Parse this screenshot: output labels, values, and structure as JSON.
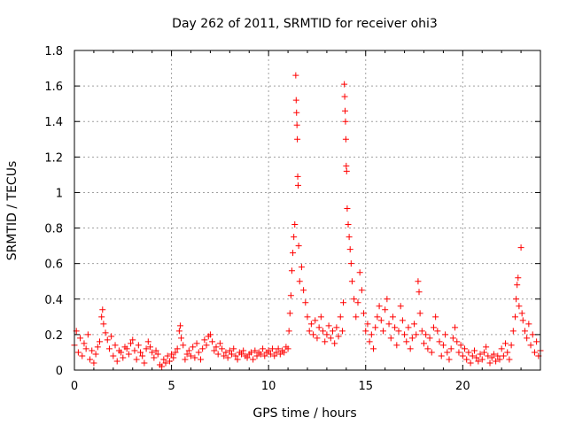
{
  "chart_data": {
    "type": "scatter",
    "title": "Day 262 of 2011, SRMTID for receiver ohi3",
    "xlabel": "GPS time / hours",
    "ylabel": "SRMTID / TECUs",
    "xlim": [
      0,
      24
    ],
    "ylim": [
      0,
      1.8
    ],
    "xticks": [
      0,
      5,
      10,
      15,
      20
    ],
    "xtick_labels": [
      "0",
      "5",
      "10",
      "15",
      "20"
    ],
    "yticks": [
      0,
      0.2,
      0.4,
      0.6,
      0.8,
      1.0,
      1.2,
      1.4,
      1.6,
      1.8
    ],
    "ytick_labels": [
      "0",
      "0.2",
      "0.4",
      "0.6",
      "0.8",
      "1",
      "1.2",
      "1.4",
      "1.6",
      "1.8"
    ],
    "grid": true,
    "marker": "+",
    "series": [
      {
        "name": "SRMTID",
        "color": "#ff0000",
        "points": [
          [
            0.0,
            0.14
          ],
          [
            0.1,
            0.22
          ],
          [
            0.2,
            0.1
          ],
          [
            0.3,
            0.18
          ],
          [
            0.4,
            0.08
          ],
          [
            0.5,
            0.15
          ],
          [
            0.6,
            0.12
          ],
          [
            0.7,
            0.2
          ],
          [
            0.8,
            0.06
          ],
          [
            0.9,
            0.11
          ],
          [
            1.0,
            0.04
          ],
          [
            1.1,
            0.09
          ],
          [
            1.2,
            0.13
          ],
          [
            1.3,
            0.16
          ],
          [
            1.4,
            0.3
          ],
          [
            1.45,
            0.34
          ],
          [
            1.5,
            0.26
          ],
          [
            1.6,
            0.21
          ],
          [
            1.7,
            0.17
          ],
          [
            1.8,
            0.12
          ],
          [
            1.9,
            0.19
          ],
          [
            2.0,
            0.08
          ],
          [
            2.1,
            0.14
          ],
          [
            2.2,
            0.05
          ],
          [
            2.3,
            0.11
          ],
          [
            2.4,
            0.1
          ],
          [
            2.5,
            0.07
          ],
          [
            2.6,
            0.13
          ],
          [
            2.7,
            0.12
          ],
          [
            2.8,
            0.09
          ],
          [
            2.9,
            0.15
          ],
          [
            3.0,
            0.17
          ],
          [
            3.1,
            0.11
          ],
          [
            3.2,
            0.06
          ],
          [
            3.3,
            0.14
          ],
          [
            3.4,
            0.1
          ],
          [
            3.5,
            0.08
          ],
          [
            3.6,
            0.04
          ],
          [
            3.7,
            0.12
          ],
          [
            3.8,
            0.16
          ],
          [
            3.9,
            0.13
          ],
          [
            4.0,
            0.1
          ],
          [
            4.1,
            0.07
          ],
          [
            4.2,
            0.11
          ],
          [
            4.3,
            0.09
          ],
          [
            4.4,
            0.03
          ],
          [
            4.5,
            0.02
          ],
          [
            4.6,
            0.06
          ],
          [
            4.7,
            0.04
          ],
          [
            4.8,
            0.08
          ],
          [
            4.9,
            0.05
          ],
          [
            5.0,
            0.09
          ],
          [
            5.1,
            0.07
          ],
          [
            5.2,
            0.1
          ],
          [
            5.3,
            0.12
          ],
          [
            5.4,
            0.22
          ],
          [
            5.45,
            0.25
          ],
          [
            5.5,
            0.18
          ],
          [
            5.6,
            0.14
          ],
          [
            5.7,
            0.06
          ],
          [
            5.8,
            0.09
          ],
          [
            5.9,
            0.11
          ],
          [
            6.0,
            0.08
          ],
          [
            6.1,
            0.13
          ],
          [
            6.2,
            0.07
          ],
          [
            6.3,
            0.15
          ],
          [
            6.4,
            0.1
          ],
          [
            6.5,
            0.06
          ],
          [
            6.6,
            0.12
          ],
          [
            6.7,
            0.17
          ],
          [
            6.8,
            0.14
          ],
          [
            6.9,
            0.19
          ],
          [
            7.0,
            0.2
          ],
          [
            7.1,
            0.16
          ],
          [
            7.2,
            0.11
          ],
          [
            7.3,
            0.13
          ],
          [
            7.4,
            0.09
          ],
          [
            7.5,
            0.15
          ],
          [
            7.6,
            0.12
          ],
          [
            7.7,
            0.08
          ],
          [
            7.8,
            0.1
          ],
          [
            7.9,
            0.07
          ],
          [
            8.0,
            0.11
          ],
          [
            8.1,
            0.09
          ],
          [
            8.2,
            0.12
          ],
          [
            8.3,
            0.08
          ],
          [
            8.4,
            0.06
          ],
          [
            8.5,
            0.1
          ],
          [
            8.6,
            0.09
          ],
          [
            8.7,
            0.11
          ],
          [
            8.8,
            0.08
          ],
          [
            8.9,
            0.07
          ],
          [
            9.0,
            0.09
          ],
          [
            9.1,
            0.1
          ],
          [
            9.2,
            0.06
          ],
          [
            9.3,
            0.11
          ],
          [
            9.4,
            0.08
          ],
          [
            9.5,
            0.1
          ],
          [
            9.6,
            0.09
          ],
          [
            9.7,
            0.12
          ],
          [
            9.8,
            0.08
          ],
          [
            9.9,
            0.1
          ],
          [
            10.0,
            0.11
          ],
          [
            10.1,
            0.09
          ],
          [
            10.2,
            0.12
          ],
          [
            10.3,
            0.08
          ],
          [
            10.4,
            0.1
          ],
          [
            10.5,
            0.12
          ],
          [
            10.6,
            0.09
          ],
          [
            10.7,
            0.11
          ],
          [
            10.8,
            0.1
          ],
          [
            10.9,
            0.13
          ],
          [
            11.0,
            0.12
          ],
          [
            11.05,
            0.22
          ],
          [
            11.1,
            0.32
          ],
          [
            11.15,
            0.42
          ],
          [
            11.2,
            0.56
          ],
          [
            11.25,
            0.66
          ],
          [
            11.3,
            0.75
          ],
          [
            11.35,
            0.82
          ],
          [
            11.4,
            1.66
          ],
          [
            11.42,
            1.52
          ],
          [
            11.44,
            1.45
          ],
          [
            11.46,
            1.38
          ],
          [
            11.48,
            1.3
          ],
          [
            11.5,
            1.09
          ],
          [
            11.52,
            1.04
          ],
          [
            11.55,
            0.7
          ],
          [
            11.6,
            0.5
          ],
          [
            11.7,
            0.58
          ],
          [
            11.8,
            0.45
          ],
          [
            11.9,
            0.38
          ],
          [
            12.0,
            0.3
          ],
          [
            12.1,
            0.22
          ],
          [
            12.2,
            0.26
          ],
          [
            12.3,
            0.2
          ],
          [
            12.4,
            0.28
          ],
          [
            12.5,
            0.18
          ],
          [
            12.6,
            0.24
          ],
          [
            12.7,
            0.3
          ],
          [
            12.8,
            0.22
          ],
          [
            12.9,
            0.16
          ],
          [
            13.0,
            0.2
          ],
          [
            13.1,
            0.25
          ],
          [
            13.2,
            0.18
          ],
          [
            13.3,
            0.22
          ],
          [
            13.4,
            0.15
          ],
          [
            13.5,
            0.24
          ],
          [
            13.6,
            0.19
          ],
          [
            13.7,
            0.3
          ],
          [
            13.8,
            0.22
          ],
          [
            13.85,
            0.38
          ],
          [
            13.9,
            1.61
          ],
          [
            13.92,
            1.54
          ],
          [
            13.94,
            1.46
          ],
          [
            13.96,
            1.4
          ],
          [
            13.98,
            1.3
          ],
          [
            14.0,
            1.15
          ],
          [
            14.02,
            1.12
          ],
          [
            14.05,
            0.91
          ],
          [
            14.1,
            0.82
          ],
          [
            14.15,
            0.75
          ],
          [
            14.2,
            0.68
          ],
          [
            14.25,
            0.6
          ],
          [
            14.3,
            0.5
          ],
          [
            14.4,
            0.4
          ],
          [
            14.5,
            0.3
          ],
          [
            14.6,
            0.38
          ],
          [
            14.7,
            0.55
          ],
          [
            14.8,
            0.45
          ],
          [
            14.9,
            0.32
          ],
          [
            15.0,
            0.22
          ],
          [
            15.1,
            0.26
          ],
          [
            15.2,
            0.16
          ],
          [
            15.3,
            0.2
          ],
          [
            15.4,
            0.12
          ],
          [
            15.5,
            0.24
          ],
          [
            15.6,
            0.3
          ],
          [
            15.7,
            0.36
          ],
          [
            15.8,
            0.28
          ],
          [
            15.9,
            0.22
          ],
          [
            16.0,
            0.34
          ],
          [
            16.1,
            0.4
          ],
          [
            16.2,
            0.26
          ],
          [
            16.3,
            0.18
          ],
          [
            16.4,
            0.3
          ],
          [
            16.5,
            0.24
          ],
          [
            16.6,
            0.14
          ],
          [
            16.7,
            0.22
          ],
          [
            16.8,
            0.36
          ],
          [
            16.9,
            0.28
          ],
          [
            17.0,
            0.2
          ],
          [
            17.1,
            0.16
          ],
          [
            17.2,
            0.24
          ],
          [
            17.3,
            0.12
          ],
          [
            17.4,
            0.18
          ],
          [
            17.5,
            0.26
          ],
          [
            17.6,
            0.2
          ],
          [
            17.7,
            0.5
          ],
          [
            17.75,
            0.44
          ],
          [
            17.8,
            0.32
          ],
          [
            17.9,
            0.22
          ],
          [
            18.0,
            0.15
          ],
          [
            18.1,
            0.2
          ],
          [
            18.2,
            0.12
          ],
          [
            18.3,
            0.18
          ],
          [
            18.4,
            0.1
          ],
          [
            18.5,
            0.24
          ],
          [
            18.6,
            0.3
          ],
          [
            18.7,
            0.22
          ],
          [
            18.8,
            0.16
          ],
          [
            18.9,
            0.08
          ],
          [
            19.0,
            0.14
          ],
          [
            19.1,
            0.2
          ],
          [
            19.2,
            0.1
          ],
          [
            19.3,
            0.06
          ],
          [
            19.4,
            0.12
          ],
          [
            19.5,
            0.18
          ],
          [
            19.6,
            0.24
          ],
          [
            19.7,
            0.16
          ],
          [
            19.8,
            0.1
          ],
          [
            19.9,
            0.14
          ],
          [
            20.0,
            0.08
          ],
          [
            20.1,
            0.12
          ],
          [
            20.2,
            0.06
          ],
          [
            20.3,
            0.1
          ],
          [
            20.4,
            0.04
          ],
          [
            20.5,
            0.08
          ],
          [
            20.6,
            0.11
          ],
          [
            20.7,
            0.07
          ],
          [
            20.8,
            0.05
          ],
          [
            20.9,
            0.09
          ],
          [
            21.0,
            0.06
          ],
          [
            21.1,
            0.1
          ],
          [
            21.2,
            0.13
          ],
          [
            21.3,
            0.08
          ],
          [
            21.4,
            0.04
          ],
          [
            21.5,
            0.07
          ],
          [
            21.6,
            0.09
          ],
          [
            21.7,
            0.05
          ],
          [
            21.8,
            0.08
          ],
          [
            21.9,
            0.06
          ],
          [
            22.0,
            0.12
          ],
          [
            22.1,
            0.08
          ],
          [
            22.2,
            0.15
          ],
          [
            22.3,
            0.1
          ],
          [
            22.4,
            0.06
          ],
          [
            22.5,
            0.14
          ],
          [
            22.6,
            0.22
          ],
          [
            22.7,
            0.3
          ],
          [
            22.75,
            0.4
          ],
          [
            22.8,
            0.48
          ],
          [
            22.85,
            0.52
          ],
          [
            22.9,
            0.36
          ],
          [
            23.0,
            0.69
          ],
          [
            23.05,
            0.32
          ],
          [
            23.1,
            0.28
          ],
          [
            23.2,
            0.22
          ],
          [
            23.3,
            0.18
          ],
          [
            23.4,
            0.26
          ],
          [
            23.5,
            0.14
          ],
          [
            23.6,
            0.2
          ],
          [
            23.7,
            0.1
          ],
          [
            23.8,
            0.16
          ],
          [
            23.9,
            0.08
          ],
          [
            24.0,
            0.11
          ]
        ]
      }
    ]
  }
}
